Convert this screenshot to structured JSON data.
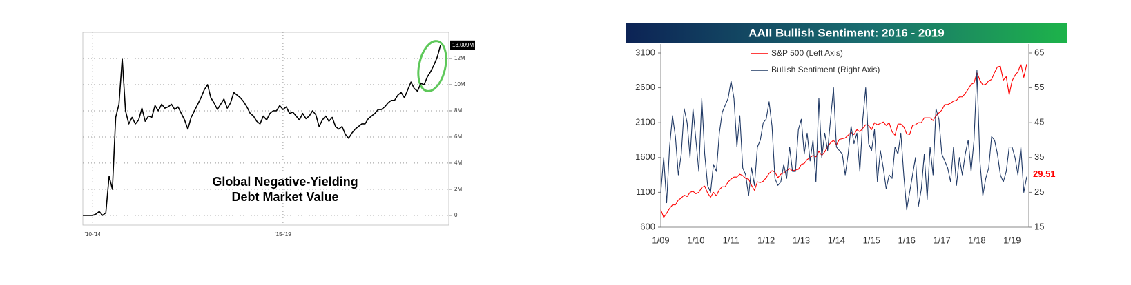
{
  "chart_data": [
    {
      "type": "line",
      "annotation": [
        "Global Negative-Yielding",
        "Debt Market Value"
      ],
      "categories": [
        null,
        null,
        null,
        "'10-'14",
        null,
        null,
        null,
        null,
        null,
        null,
        null,
        null,
        null,
        null,
        null,
        null,
        null,
        null,
        null,
        null,
        null,
        null,
        null,
        null,
        null,
        null,
        null,
        null,
        null,
        null,
        null,
        null,
        null,
        null,
        null,
        null,
        null,
        null,
        null,
        null,
        null,
        null,
        null,
        null,
        null,
        null,
        null,
        null,
        null,
        null,
        null,
        null,
        null,
        null,
        null,
        null,
        null,
        null,
        null,
        null,
        null,
        "'15-'19",
        null,
        null,
        null,
        null,
        null,
        null,
        null,
        null,
        null,
        null,
        null,
        null,
        null,
        null,
        null,
        null,
        null,
        null,
        null,
        null,
        null,
        null,
        null,
        null,
        null,
        null,
        null,
        null,
        null,
        null,
        null,
        null,
        null,
        null,
        null,
        null,
        null,
        null,
        null,
        null,
        null,
        null,
        null,
        null,
        null,
        null,
        null,
        null
      ],
      "series": [
        {
          "color": "#000000",
          "end_label": "13.009M",
          "values": [
            0,
            0,
            0,
            0,
            0.1,
            0.3,
            0,
            0.2,
            3,
            2,
            7.5,
            8.5,
            12,
            8,
            7,
            7.5,
            7,
            7.3,
            8.2,
            7.2,
            7.6,
            7.5,
            8.4,
            8.0,
            8.5,
            8.2,
            8.3,
            8.5,
            8.1,
            8.3,
            7.8,
            7.3,
            6.6,
            7.5,
            8,
            8.5,
            9.0,
            9.6,
            10.0,
            9.0,
            8.6,
            8.1,
            8.5,
            8.9,
            8.2,
            8.6,
            9.4,
            9.2,
            9.0,
            8.7,
            8.3,
            7.8,
            7.6,
            7.2,
            7.0,
            7.6,
            7.3,
            7.8,
            8.0,
            8.0,
            8.4,
            8.1,
            8.3,
            7.8,
            7.9,
            7.6,
            7.3,
            7.8,
            7.4,
            7.6,
            8.0,
            7.7,
            6.8,
            7.3,
            7.6,
            7.2,
            7.5,
            6.8,
            6.6,
            6.8,
            6.2,
            5.9,
            6.3,
            6.6,
            6.8,
            7.0,
            7.0,
            7.4,
            7.6,
            7.8,
            8.1,
            8.1,
            8.3,
            8.6,
            8.8,
            8.8,
            9.2,
            9.4,
            9.0,
            9.6,
            10.2,
            9.7,
            9.5,
            10.1,
            10.0,
            10.6,
            11.0,
            11.5,
            12.1,
            13.009
          ]
        }
      ],
      "ylim": [
        -0.7,
        14
      ],
      "yticks": [
        0,
        {
          "value": 2,
          "label": "2M"
        },
        {
          "value": 4,
          "label": "4M"
        },
        {
          "value": 6,
          "label": "6M"
        },
        {
          "value": 8,
          "label": "8M"
        },
        {
          "value": 10,
          "label": "10M"
        },
        {
          "value": 12,
          "label": "12M"
        }
      ],
      "y_axis_side": "right",
      "grid": true
    },
    {
      "type": "line",
      "title": "AAII Bullish Sentiment: 2016 - 2019",
      "categories": [
        "1/09",
        null,
        null,
        null,
        null,
        null,
        null,
        null,
        null,
        null,
        null,
        null,
        "1/10",
        null,
        null,
        null,
        null,
        null,
        null,
        null,
        null,
        null,
        null,
        null,
        "1/11",
        null,
        null,
        null,
        null,
        null,
        null,
        null,
        null,
        null,
        null,
        null,
        "1/12",
        null,
        null,
        null,
        null,
        null,
        null,
        null,
        null,
        null,
        null,
        null,
        "1/13",
        null,
        null,
        null,
        null,
        null,
        null,
        null,
        null,
        null,
        null,
        null,
        "1/14",
        null,
        null,
        null,
        null,
        null,
        null,
        null,
        null,
        null,
        null,
        null,
        "1/15",
        null,
        null,
        null,
        null,
        null,
        null,
        null,
        null,
        null,
        null,
        null,
        "1/16",
        null,
        null,
        null,
        null,
        null,
        null,
        null,
        null,
        null,
        null,
        null,
        "1/17",
        null,
        null,
        null,
        null,
        null,
        null,
        null,
        null,
        null,
        null,
        null,
        "1/18",
        null,
        null,
        null,
        null,
        null,
        null,
        null,
        null,
        null,
        null,
        null,
        "1/19",
        null,
        null,
        null,
        null,
        null
      ],
      "series": [
        {
          "name": "S&P 500 (Left Axis)",
          "color": "#ff0000",
          "values": [
            850,
            740,
            800,
            870,
            920,
            920,
            990,
            1020,
            1060,
            1040,
            1100,
            1115,
            1080,
            1100,
            1170,
            1190,
            1090,
            1030,
            1100,
            1050,
            1140,
            1180,
            1180,
            1250,
            1290,
            1320,
            1320,
            1360,
            1340,
            1300,
            1290,
            1200,
            1130,
            1250,
            1240,
            1260,
            1310,
            1370,
            1410,
            1390,
            1310,
            1360,
            1380,
            1410,
            1440,
            1410,
            1420,
            1430,
            1500,
            1515,
            1570,
            1600,
            1630,
            1610,
            1690,
            1630,
            1680,
            1760,
            1810,
            1850,
            1780,
            1860,
            1870,
            1880,
            1920,
            1960,
            1930,
            2000,
            1970,
            2020,
            2070,
            2060,
            2000,
            2100,
            2070,
            2090,
            2110,
            2060,
            2100,
            1970,
            1920,
            2080,
            2080,
            2040,
            1940,
            1930,
            2060,
            2070,
            2100,
            2100,
            2170,
            2170,
            2170,
            2130,
            2200,
            2240,
            2280,
            2360,
            2360,
            2380,
            2410,
            2420,
            2470,
            2470,
            2520,
            2580,
            2650,
            2670,
            2820,
            2710,
            2640,
            2650,
            2700,
            2720,
            2820,
            2900,
            2910,
            2710,
            2760,
            2500,
            2700,
            2780,
            2830,
            2940,
            2750,
            2940
          ]
        },
        {
          "name": "Bullish Sentiment (Right Axis)",
          "color": "#1f3864",
          "axis": "y2",
          "end_label_color": "#ff0000",
          "values": [
            25,
            35,
            22,
            38,
            47,
            41,
            30,
            36,
            49,
            45,
            35,
            49,
            40,
            31,
            52,
            36,
            27,
            25,
            33,
            31,
            42,
            48,
            50,
            52,
            57,
            52,
            38,
            47,
            32,
            30,
            24,
            32,
            27,
            38,
            40,
            45,
            46,
            51,
            44,
            29,
            27,
            28,
            33,
            29,
            38,
            31,
            31,
            43,
            46,
            36,
            42,
            34,
            40,
            28,
            52,
            35,
            42,
            37,
            46,
            55,
            38,
            37,
            36,
            30,
            36,
            44,
            39,
            42,
            31,
            46,
            55,
            39,
            37,
            43,
            28,
            37,
            32,
            26,
            30,
            29,
            38,
            36,
            42,
            30,
            20,
            25,
            30,
            35,
            21,
            26,
            36,
            23,
            38,
            30,
            49,
            46,
            36,
            34,
            32,
            28,
            38,
            27,
            35,
            30,
            36,
            40,
            31,
            40,
            60,
            34,
            24,
            29,
            32,
            41,
            40,
            36,
            30,
            28,
            31,
            38,
            38,
            35,
            30,
            38,
            25,
            29.51
          ]
        }
      ],
      "ylim": [
        600,
        3100
      ],
      "yticks": [
        600,
        1100,
        1600,
        2100,
        2600,
        3100
      ],
      "y2lim": [
        15,
        65
      ],
      "y2ticks": [
        15,
        25,
        35,
        45,
        55,
        65
      ],
      "legend": "top-center"
    }
  ]
}
